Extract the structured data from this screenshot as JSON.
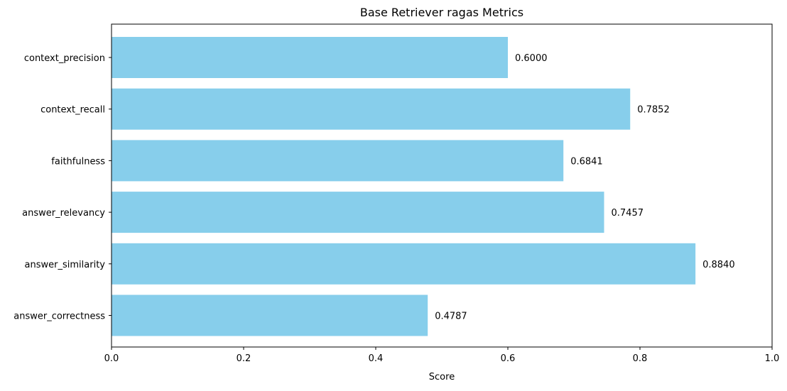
{
  "chart_data": {
    "type": "bar",
    "orientation": "horizontal",
    "title": "Base Retriever ragas Metrics",
    "xlabel": "Score",
    "ylabel": "",
    "xlim": [
      0,
      1.0
    ],
    "xticks": [
      "0.0",
      "0.2",
      "0.4",
      "0.6",
      "0.8",
      "1.0"
    ],
    "categories": [
      "context_precision",
      "context_recall",
      "faithfulness",
      "answer_relevancy",
      "answer_similarity",
      "answer_correctness"
    ],
    "values": [
      0.6,
      0.7852,
      0.6841,
      0.7457,
      0.884,
      0.4787
    ],
    "value_labels": [
      "0.6000",
      "0.7852",
      "0.6841",
      "0.7457",
      "0.8840",
      "0.4787"
    ],
    "bar_color": "#87ceeb",
    "grid": false,
    "legend": "none"
  }
}
